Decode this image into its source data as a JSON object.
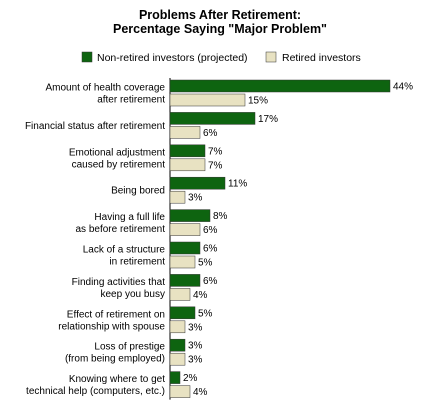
{
  "chart_data": {
    "type": "bar",
    "orientation": "horizontal",
    "title": "Problems After Retirement:",
    "subtitle": "Percentage Saying \"Major Problem\"",
    "legend_position": "top",
    "categories": [
      [
        "Amount of health coverage",
        "after retirement"
      ],
      [
        "Financial status after retirement"
      ],
      [
        "Emotional adjustment",
        "caused by retirement"
      ],
      [
        "Being bored"
      ],
      [
        "Having a full life",
        "as before retirement"
      ],
      [
        "Lack of a structure",
        "in retirement"
      ],
      [
        "Finding activities that",
        "keep you busy"
      ],
      [
        "Effect of retirement on",
        "relationship with spouse"
      ],
      [
        "Loss of prestige",
        "(from being employed)"
      ],
      [
        "Knowing where to get",
        "technical help (computers, etc.)"
      ]
    ],
    "series": [
      {
        "name": "Non-retired investors (projected)",
        "color": "#0e6410",
        "values": [
          44,
          17,
          7,
          11,
          8,
          6,
          6,
          5,
          3,
          2
        ]
      },
      {
        "name": "Retired investors",
        "color": "#e8e2c2",
        "values": [
          15,
          6,
          7,
          3,
          6,
          5,
          4,
          3,
          3,
          4
        ]
      }
    ],
    "value_suffix": "%",
    "xlim": [
      0,
      44
    ],
    "grid": false
  }
}
